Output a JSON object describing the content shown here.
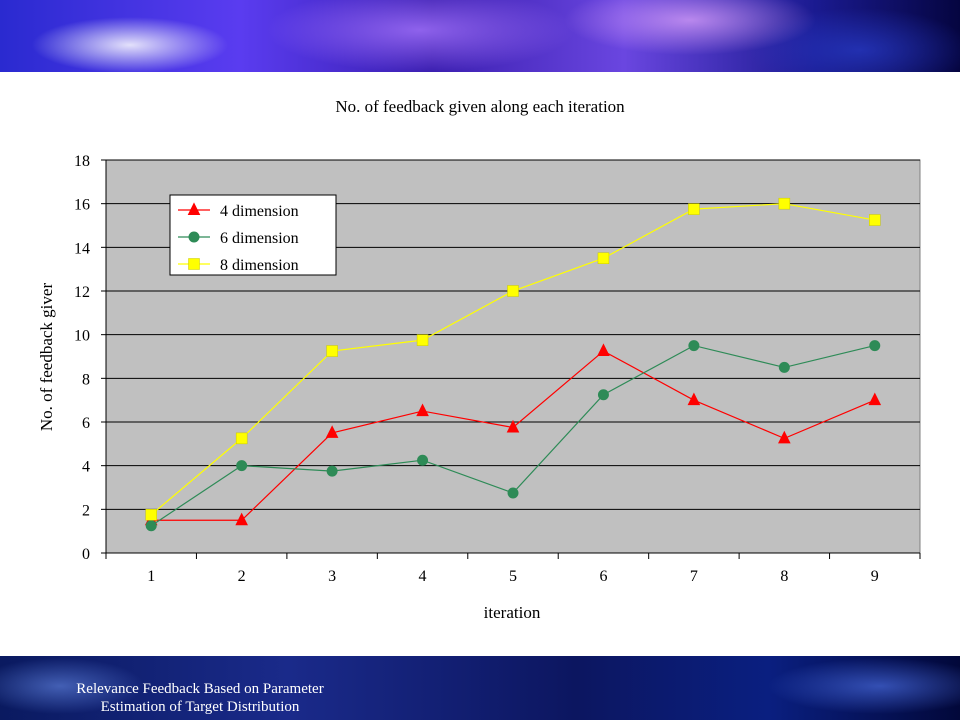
{
  "slide": {
    "footer_line1": "Relevance Feedback Based on Parameter",
    "footer_line2": "Estimation of Target Distribution"
  },
  "chart_data": {
    "type": "line",
    "title": "No. of feedback given along each iteration",
    "xlabel": "iteration",
    "ylabel": "No. of feedback giver",
    "categories": [
      "1",
      "2",
      "3",
      "4",
      "5",
      "6",
      "7",
      "8",
      "9"
    ],
    "ylim": [
      0,
      18
    ],
    "yticks": [
      0,
      2,
      4,
      6,
      8,
      10,
      12,
      14,
      16,
      18
    ],
    "grid": true,
    "legend_position": "top-left",
    "plot_background": "#c0c0c0",
    "series": [
      {
        "name": "4 dimension",
        "marker": "triangle",
        "color": "#ff0000",
        "values": [
          1.5,
          1.5,
          5.5,
          6.5,
          5.75,
          9.25,
          7.0,
          5.25,
          7.0
        ]
      },
      {
        "name": "6 dimension",
        "marker": "circle",
        "color": "#2e8b57",
        "values": [
          1.25,
          4.0,
          3.75,
          4.25,
          2.75,
          7.25,
          9.5,
          8.5,
          9.5
        ]
      },
      {
        "name": "8 dimension",
        "marker": "square",
        "color": "#ffff00",
        "values": [
          1.75,
          5.25,
          9.25,
          9.75,
          12.0,
          13.5,
          15.75,
          16.0,
          15.25
        ]
      }
    ]
  }
}
